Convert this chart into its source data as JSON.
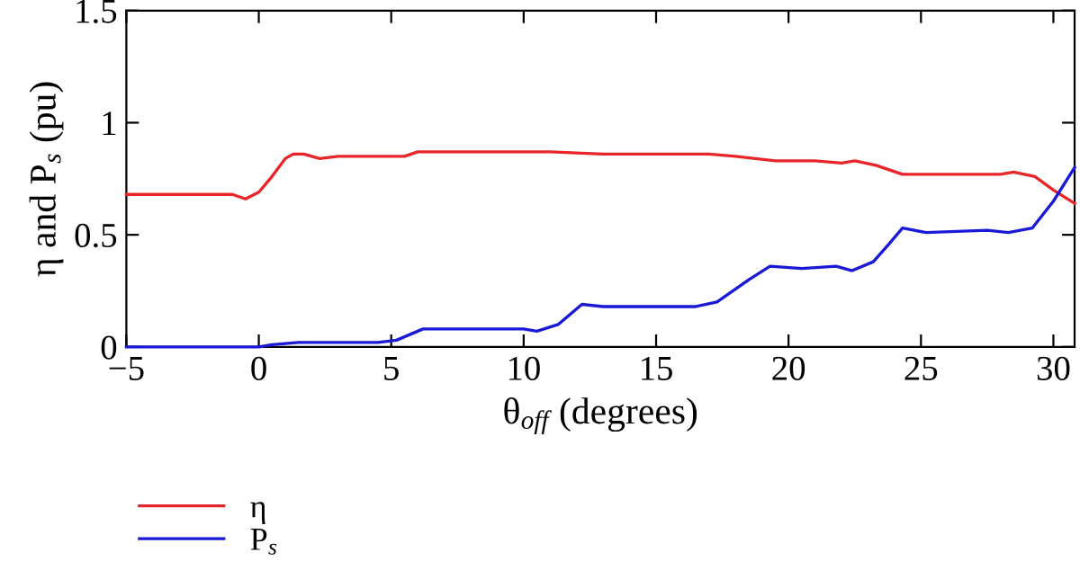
{
  "chart_data": {
    "type": "line",
    "xlabel": "θ$_{off}$ (degrees)",
    "ylabel": "η and P$_{s}$ (pu)",
    "xlim": [
      -5,
      30.8
    ],
    "xticks": [
      -5,
      0,
      5,
      10,
      15,
      20,
      25,
      30
    ],
    "ylim": [
      0,
      1.5
    ],
    "yticks": [
      0,
      0.5,
      1,
      1.5
    ],
    "grid": false,
    "legend": "bottom left",
    "marker": "none",
    "line_style": "solid",
    "series": [
      {
        "name": "η",
        "color": "#e8262a",
        "x": [
          -5,
          -3,
          -1.5,
          -1,
          -0.5,
          0,
          0.5,
          1,
          1.3,
          1.7,
          2.3,
          3,
          4.5,
          5.5,
          6,
          8,
          10,
          11,
          13,
          15,
          17,
          18,
          19.5,
          21,
          22,
          22.5,
          23.3,
          23.8,
          24.3,
          25,
          27,
          28,
          28.5,
          29.3,
          30,
          30.8
        ],
        "values": [
          0.68,
          0.68,
          0.68,
          0.68,
          0.66,
          0.69,
          0.76,
          0.84,
          0.86,
          0.86,
          0.84,
          0.85,
          0.85,
          0.85,
          0.87,
          0.87,
          0.87,
          0.87,
          0.86,
          0.86,
          0.86,
          0.85,
          0.83,
          0.83,
          0.82,
          0.83,
          0.81,
          0.79,
          0.77,
          0.77,
          0.77,
          0.77,
          0.78,
          0.76,
          0.7,
          0.64
        ]
      },
      {
        "name": "P$_{s}$",
        "color": "#1a1ad6",
        "x": [
          -5,
          -1,
          0,
          0.5,
          1.5,
          3,
          4.5,
          5.2,
          5.8,
          6.2,
          7,
          9,
          10,
          10.5,
          11.3,
          11.8,
          12.2,
          13,
          15,
          16.5,
          17.3,
          18.5,
          19.3,
          20.5,
          21.8,
          22.4,
          23.2,
          23.8,
          24.3,
          25.2,
          27.5,
          28.3,
          29.2,
          30,
          30.8
        ],
        "values": [
          0,
          0,
          0,
          0.01,
          0.02,
          0.02,
          0.02,
          0.03,
          0.06,
          0.08,
          0.08,
          0.08,
          0.08,
          0.07,
          0.1,
          0.15,
          0.19,
          0.18,
          0.18,
          0.18,
          0.2,
          0.3,
          0.36,
          0.35,
          0.36,
          0.34,
          0.38,
          0.46,
          0.53,
          0.51,
          0.52,
          0.51,
          0.53,
          0.65,
          0.8
        ]
      }
    ]
  }
}
